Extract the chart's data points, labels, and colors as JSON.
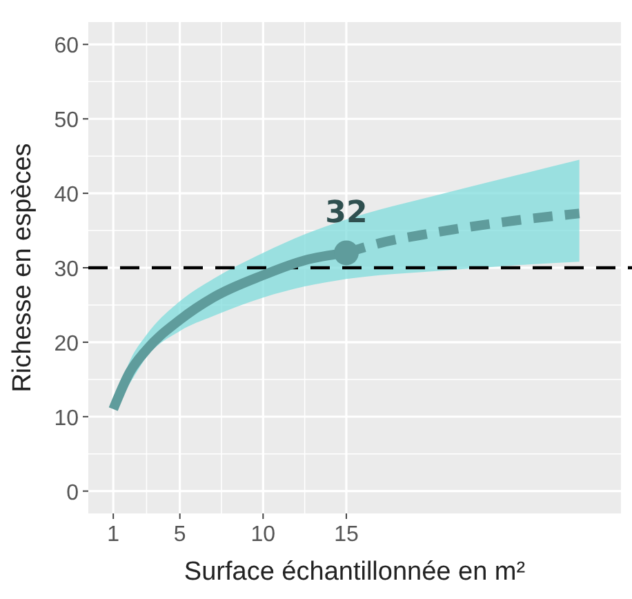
{
  "chart_data": {
    "type": "line",
    "xlabel": "Surface échantillonnée en m²",
    "ylabel": "Richesse en espèces",
    "xlim": [
      -0.5,
      31.5
    ],
    "ylim": [
      -3,
      63
    ],
    "xticks": [
      1,
      5,
      10,
      15
    ],
    "yticks": [
      0,
      10,
      20,
      30,
      40,
      50,
      60
    ],
    "grid": true,
    "series": [
      {
        "color": "#5f9c9c",
        "line_style": "solid",
        "x": [
          1,
          2,
          3,
          5,
          7,
          10,
          12.5,
          15
        ],
        "values": [
          11,
          16,
          19,
          23,
          26,
          29,
          31,
          32
        ],
        "lower": [
          11,
          14.5,
          18,
          21.5,
          23.5,
          26,
          27.5,
          28.5
        ],
        "upper": [
          11,
          17.5,
          21,
          25.5,
          28.5,
          32,
          34.5,
          36.5
        ]
      },
      {
        "color": "#5f9c9c",
        "line_style": "dashed",
        "x": [
          15,
          17,
          20,
          25,
          29
        ],
        "values": [
          32,
          33.3,
          34.6,
          36.3,
          37.3
        ],
        "lower": [
          28.5,
          29,
          29.5,
          30.3,
          30.8
        ],
        "upper": [
          36.5,
          37.8,
          39.5,
          42.3,
          44.5
        ]
      },
      {
        "type": "scatter",
        "color": "#5f9c9c",
        "marker": "circle",
        "x": [
          15
        ],
        "values": [
          32
        ],
        "value_labels": [
          "32"
        ]
      }
    ],
    "ref_lines": [
      {
        "axis": "y",
        "value": 30,
        "color": "#000000",
        "line_style": "dashed"
      }
    ]
  }
}
